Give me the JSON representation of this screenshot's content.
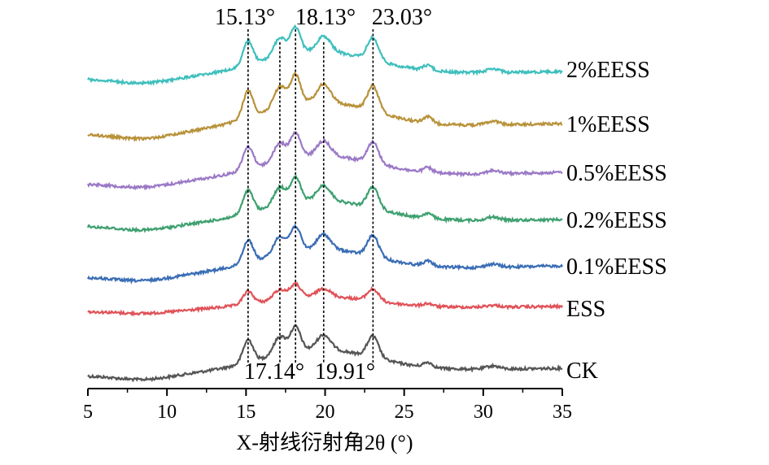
{
  "chart_data": {
    "type": "line",
    "title": "",
    "xlabel": "X-射线衍射角2θ (°)",
    "ylabel": "",
    "xlim": [
      5,
      35
    ],
    "xticks": [
      5,
      10,
      15,
      20,
      25,
      30,
      35
    ],
    "grid": false,
    "peak_markers": [
      {
        "x": 15.13,
        "label": "15.13°",
        "label_position": "top"
      },
      {
        "x": 17.14,
        "label": "17.14°",
        "label_position": "bottom"
      },
      {
        "x": 18.13,
        "label": "18.13°",
        "label_position": "top"
      },
      {
        "x": 19.91,
        "label": "19.91°",
        "label_position": "bottom"
      },
      {
        "x": 23.03,
        "label": "23.03°",
        "label_position": "top"
      }
    ],
    "series": [
      {
        "name": "CK",
        "color": "#555555"
      },
      {
        "name": "ESS",
        "color": "#e05258"
      },
      {
        "name": "0.1%EESS",
        "color": "#3a6db5"
      },
      {
        "name": "0.2%EESS",
        "color": "#3fa070"
      },
      {
        "name": "0.5%EESS",
        "color": "#9b79c6"
      },
      {
        "name": "1%EESS",
        "color": "#b8923a"
      },
      {
        "name": "2%EESS",
        "color": "#3fbfbd"
      }
    ]
  }
}
